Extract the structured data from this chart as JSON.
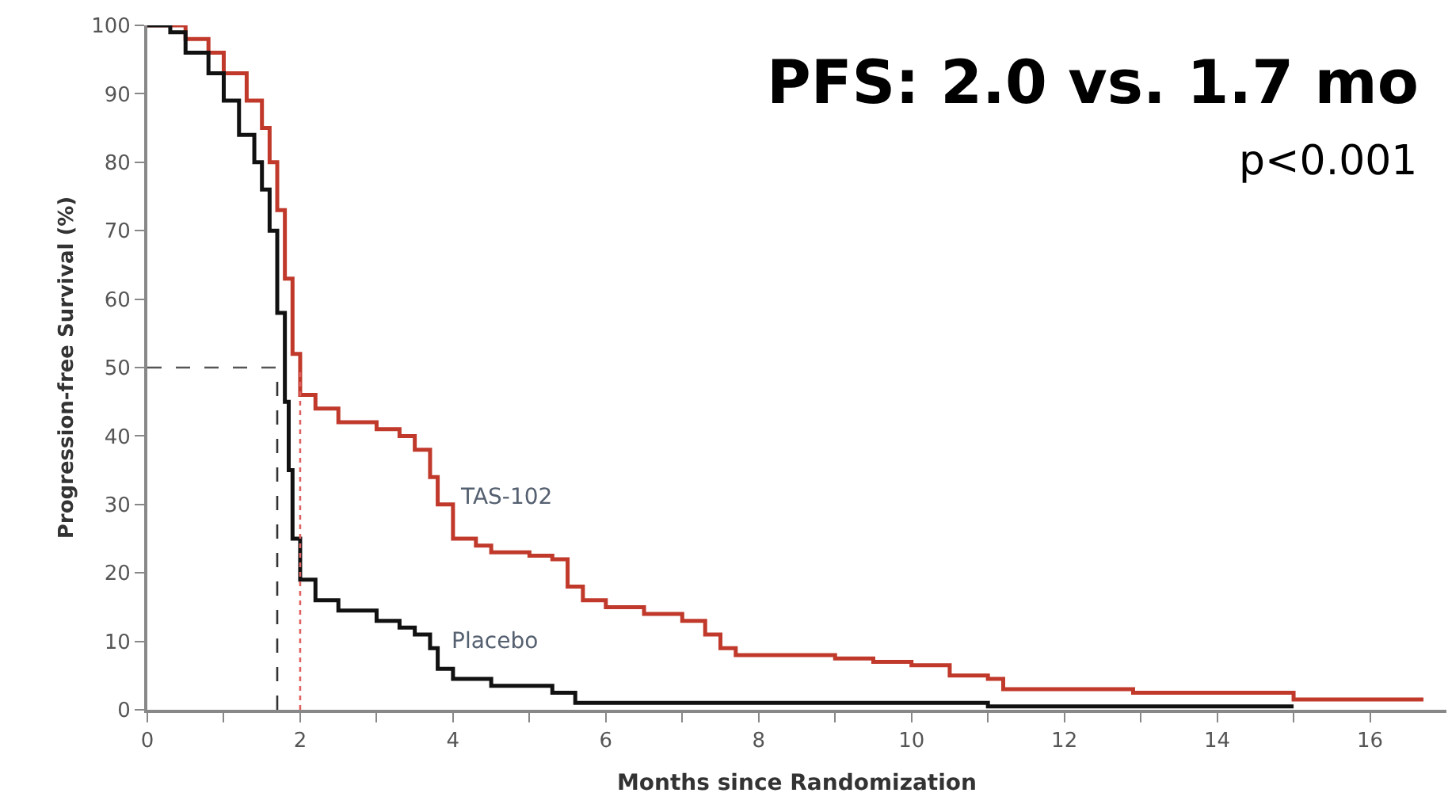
{
  "chart_data": {
    "type": "step",
    "title": "PFS: 2.0 vs. 1.7 mo",
    "subtitle": "p<0.001",
    "xlabel": "Months since Randomization",
    "ylabel": "Progression-free Survival (%)",
    "series": [
      {
        "color": "#c0392b",
        "x": [
          0,
          0.3,
          0.5,
          0.8,
          1.0,
          1.3,
          1.5,
          1.6,
          1.7,
          1.8,
          1.9,
          2.0,
          2.2,
          2.5,
          3.0,
          3.3,
          3.5,
          3.7,
          3.8,
          4.0,
          4.3,
          4.5,
          5.0,
          5.3,
          5.5,
          5.7,
          6.0,
          6.5,
          7.0,
          7.3,
          7.5,
          7.7,
          9.0,
          9.5,
          10.0,
          10.5,
          11.0,
          11.2,
          12.9,
          15.0,
          16.7
        ],
        "values": [
          100,
          100,
          98,
          96,
          93,
          89,
          85,
          80,
          73,
          63,
          52,
          46,
          44,
          42,
          41,
          40,
          38,
          34,
          30,
          25,
          24,
          23,
          22.5,
          22,
          18,
          16,
          15,
          14,
          13,
          11,
          9,
          8,
          7.5,
          7,
          6.5,
          5,
          4.5,
          3,
          2.5,
          1.5,
          1.5
        ]
      },
      {
        "color": "#111111",
        "x": [
          0,
          0.3,
          0.5,
          0.8,
          1.0,
          1.2,
          1.4,
          1.5,
          1.6,
          1.7,
          1.8,
          1.85,
          1.9,
          2.0,
          2.2,
          2.5,
          3.0,
          3.3,
          3.5,
          3.7,
          3.8,
          4.0,
          4.5,
          5.0,
          5.3,
          5.6,
          10.9,
          11.0,
          15.0
        ],
        "values": [
          100,
          99,
          96,
          93,
          89,
          84,
          80,
          76,
          70,
          58,
          45,
          35,
          25,
          19,
          16,
          14.5,
          13,
          12,
          11,
          9,
          6,
          4.5,
          3.5,
          3.5,
          2.5,
          1,
          1,
          0.5,
          0.5
        ]
      }
    ],
    "annotations": [
      {
        "text": "TAS-102",
        "x": 3.8,
        "y": 30
      },
      {
        "text": "Placebo",
        "x": 3.7,
        "y": 9
      }
    ],
    "ref_lines": [
      {
        "axis": "y",
        "value": 50,
        "color": "#555555",
        "line_style": "dashed"
      },
      {
        "axis": "x",
        "value": 1.7,
        "color": "#333333",
        "line_style": "dashed"
      },
      {
        "axis": "x",
        "value": 2.0,
        "color": "#e06060",
        "line_style": "dotted"
      }
    ],
    "xlim": [
      0,
      17
    ],
    "xticks": [
      0,
      {
        "value": 1,
        "label": null
      },
      2,
      {
        "value": 3,
        "label": null
      },
      4,
      {
        "value": 5,
        "label": null
      },
      6,
      {
        "value": 7,
        "label": null
      },
      8,
      {
        "value": 9,
        "label": null
      },
      10,
      {
        "value": 11,
        "label": null
      },
      12,
      {
        "value": 13,
        "label": null
      },
      14,
      {
        "value": 15,
        "label": null
      },
      16
    ],
    "ylim": [
      0,
      100
    ],
    "yticks": [
      0,
      10,
      20,
      30,
      40,
      50,
      60,
      70,
      80,
      90,
      100
    ],
    "grid": false,
    "marker": "none",
    "line_style": "solid"
  }
}
